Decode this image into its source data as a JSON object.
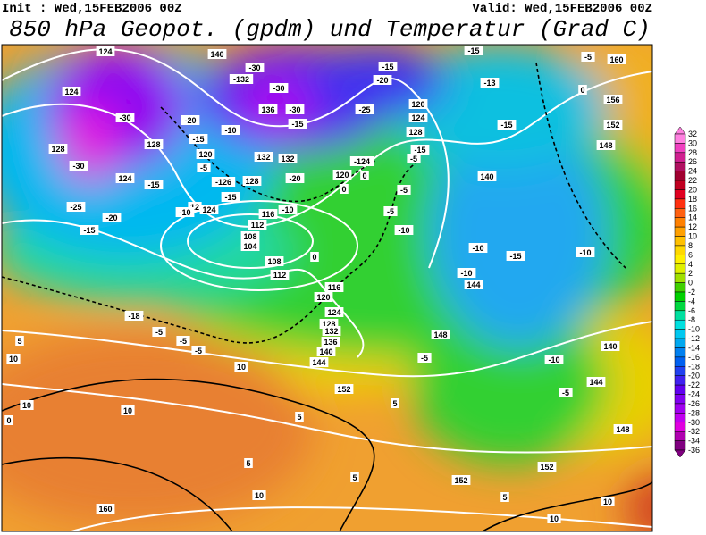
{
  "header": {
    "init": "Init : Wed,15FEB2006 00Z",
    "valid": "Valid: Wed,15FEB2006 00Z",
    "title": "850 hPa Geopot. (gpdm) und Temperatur (Grad C)"
  },
  "colorbar": {
    "labels": [
      32,
      30,
      28,
      26,
      24,
      22,
      20,
      18,
      16,
      14,
      12,
      10,
      8,
      6,
      4,
      2,
      0,
      -2,
      -4,
      -6,
      -8,
      -10,
      -12,
      -14,
      -16,
      -18,
      -20,
      -22,
      -24,
      -26,
      -28,
      -30,
      -32,
      -34,
      -36
    ],
    "colors": [
      "#ff80e0",
      "#f040c0",
      "#d02090",
      "#b01060",
      "#a00030",
      "#c00020",
      "#e00020",
      "#ff3010",
      "#ff6010",
      "#ff8000",
      "#ffa000",
      "#ffc000",
      "#ffd800",
      "#fff000",
      "#e0f000",
      "#a0e000",
      "#40d000",
      "#00d000",
      "#00d840",
      "#00e0a0",
      "#00e0e0",
      "#00c8f0",
      "#00a8f0",
      "#0080f0",
      "#0060f0",
      "#2040f0",
      "#4020f0",
      "#6000f0",
      "#8000f0",
      "#a000f0",
      "#c000f0",
      "#e000e0",
      "#b000b0",
      "#800080"
    ]
  },
  "map_labels": [
    "124",
    "124",
    "-30",
    "128",
    "-30",
    "124",
    "-15",
    "-25",
    "-20",
    "-15",
    "128",
    "-20",
    "-15",
    "-10",
    "120",
    "-5",
    "-126",
    "128",
    "-15",
    "12",
    "124",
    "-10",
    "116",
    "-10",
    "112",
    "108",
    "104",
    "108",
    "112",
    "0",
    "140",
    "-30",
    "-132",
    "-30",
    "136",
    "-30",
    "-15",
    "132",
    "132",
    "-20",
    "120",
    "0",
    "0",
    "-124",
    "-15",
    "-20",
    "-25",
    "120",
    "124",
    "128",
    "-15",
    "-5",
    "-5",
    "-5",
    "-10",
    "-15",
    "-13",
    "-15",
    "140",
    "-5",
    "160",
    "0",
    "156",
    "152",
    "148",
    "-10",
    "-15",
    "-10",
    "-10",
    "144",
    "116",
    "120",
    "124",
    "128",
    "132",
    "136",
    "140",
    "144",
    "148",
    "-5",
    "140",
    "-10",
    "144",
    "-5",
    "152",
    "-18",
    "-5",
    "-5",
    "-5",
    "5",
    "10",
    "10",
    "10",
    "10",
    "0",
    "5",
    "5",
    "148",
    "5",
    "152",
    "5",
    "160",
    "10",
    "5",
    "10",
    "10",
    "152",
    "5"
  ]
}
